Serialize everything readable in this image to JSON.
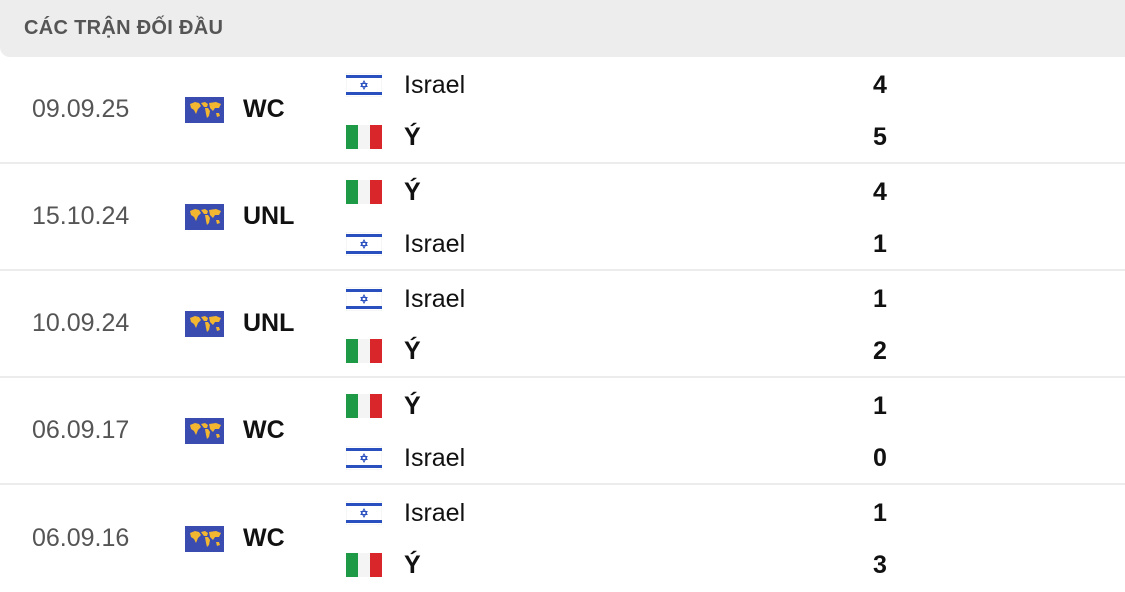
{
  "header": {
    "title": "CÁC TRẬN ĐỐI ĐẦU"
  },
  "colors": {
    "israel_blue": "#2a4fbf",
    "italy_green": "#1e9a46",
    "italy_red": "#d8262b",
    "comp_bg": "#3a4cb0",
    "comp_land": "#f2b630"
  },
  "matches": [
    {
      "date": "09.09.25",
      "competition": "WC",
      "competition_icon": "world-map-icon",
      "teams": [
        {
          "name": "Israel",
          "flag": "israel",
          "score": "4",
          "winner": false
        },
        {
          "name": "Ý",
          "flag": "italy",
          "score": "5",
          "winner": true
        }
      ]
    },
    {
      "date": "15.10.24",
      "competition": "UNL",
      "competition_icon": "world-map-icon",
      "teams": [
        {
          "name": "Ý",
          "flag": "italy",
          "score": "4",
          "winner": true
        },
        {
          "name": "Israel",
          "flag": "israel",
          "score": "1",
          "winner": false
        }
      ]
    },
    {
      "date": "10.09.24",
      "competition": "UNL",
      "competition_icon": "world-map-icon",
      "teams": [
        {
          "name": "Israel",
          "flag": "israel",
          "score": "1",
          "winner": false
        },
        {
          "name": "Ý",
          "flag": "italy",
          "score": "2",
          "winner": true
        }
      ]
    },
    {
      "date": "06.09.17",
      "competition": "WC",
      "competition_icon": "world-map-icon",
      "teams": [
        {
          "name": "Ý",
          "flag": "italy",
          "score": "1",
          "winner": true
        },
        {
          "name": "Israel",
          "flag": "israel",
          "score": "0",
          "winner": false
        }
      ]
    },
    {
      "date": "06.09.16",
      "competition": "WC",
      "competition_icon": "world-map-icon",
      "teams": [
        {
          "name": "Israel",
          "flag": "israel",
          "score": "1",
          "winner": false
        },
        {
          "name": "Ý",
          "flag": "italy",
          "score": "3",
          "winner": true
        }
      ]
    }
  ]
}
